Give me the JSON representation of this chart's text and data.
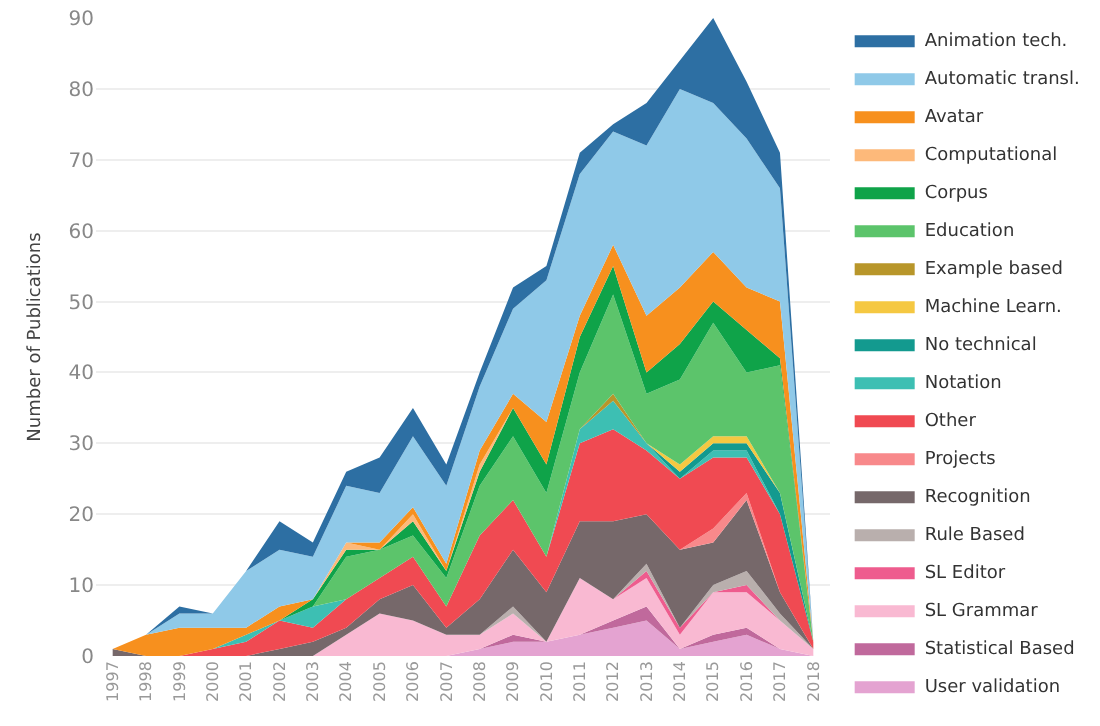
{
  "chart_data": {
    "type": "area",
    "stacked": true,
    "ylabel": "Number of Publications",
    "categories": [
      "1997",
      "1998",
      "1999",
      "2000",
      "2001",
      "2002",
      "2003",
      "2004",
      "2005",
      "2006",
      "2007",
      "2008",
      "2009",
      "2010",
      "2011",
      "2012",
      "2013",
      "2014",
      "2015",
      "2016",
      "2017",
      "2018"
    ],
    "ylim": [
      0,
      90
    ],
    "yticks": [
      0,
      10,
      20,
      30,
      40,
      50,
      60,
      70,
      80,
      90
    ],
    "grid": "y",
    "legend": "right",
    "series": [
      {
        "name": "User validation",
        "color": "#e4a3d1",
        "values": [
          0,
          0,
          0,
          0,
          0,
          0,
          0,
          0,
          0,
          0,
          0,
          1,
          2,
          2,
          3,
          4,
          5,
          1,
          2,
          3,
          1,
          0
        ]
      },
      {
        "name": "Statistical Based",
        "color": "#c0699c",
        "values": [
          null,
          null,
          null,
          null,
          null,
          null,
          null,
          null,
          null,
          null,
          null,
          0,
          1,
          0,
          0,
          1,
          2,
          0,
          1,
          1,
          0,
          null
        ]
      },
      {
        "name": "SL Grammar",
        "color": "#f9b9d2",
        "values": [
          0,
          0,
          0,
          0,
          0,
          0,
          0,
          3,
          6,
          5,
          3,
          2,
          3,
          0,
          8,
          3,
          4,
          2,
          6,
          5,
          4,
          1
        ]
      },
      {
        "name": "SL Editor",
        "color": "#ee5c8e",
        "values": [
          null,
          null,
          null,
          null,
          null,
          null,
          null,
          null,
          null,
          null,
          null,
          null,
          null,
          null,
          null,
          0,
          1,
          1,
          0,
          1,
          0,
          null
        ]
      },
      {
        "name": "Rule Based",
        "color": "#b9afad",
        "values": [
          null,
          null,
          null,
          null,
          null,
          null,
          null,
          null,
          null,
          null,
          null,
          0,
          1,
          0,
          0,
          0,
          1,
          0,
          1,
          2,
          1,
          0
        ]
      },
      {
        "name": "Recognition",
        "color": "#76686a",
        "values": [
          1,
          0,
          0,
          0,
          0,
          1,
          2,
          1,
          2,
          5,
          1,
          5,
          8,
          7,
          8,
          11,
          7,
          11,
          6,
          10,
          3,
          0
        ]
      },
      {
        "name": "Projects",
        "color": "#f8898b",
        "values": [
          null,
          null,
          null,
          null,
          null,
          null,
          null,
          null,
          null,
          null,
          null,
          null,
          null,
          null,
          null,
          null,
          null,
          0,
          2,
          1,
          0,
          null
        ]
      },
      {
        "name": "Other",
        "color": "#f04a52",
        "values": [
          0,
          0,
          0,
          1,
          2,
          4,
          2,
          4,
          3,
          4,
          3,
          9,
          7,
          5,
          11,
          13,
          9,
          10,
          10,
          5,
          11,
          1
        ]
      },
      {
        "name": "Notation",
        "color": "#3dbfb3",
        "values": [
          null,
          null,
          null,
          0,
          1,
          0,
          3,
          0,
          0,
          0,
          0,
          0,
          0,
          0,
          2,
          4,
          1,
          0,
          1,
          1,
          0,
          null
        ]
      },
      {
        "name": "No technical",
        "color": "#139a8f",
        "values": [
          null,
          null,
          null,
          null,
          null,
          null,
          null,
          null,
          null,
          null,
          null,
          null,
          null,
          null,
          null,
          null,
          0,
          1,
          1,
          1,
          3,
          0
        ]
      },
      {
        "name": "Machine Learn.",
        "color": "#f5c842",
        "values": [
          null,
          null,
          null,
          null,
          null,
          null,
          null,
          null,
          null,
          null,
          null,
          null,
          null,
          null,
          null,
          null,
          0,
          1,
          1,
          1,
          0,
          null
        ]
      },
      {
        "name": "Example based",
        "color": "#b8962a",
        "values": [
          null,
          null,
          null,
          null,
          null,
          null,
          null,
          null,
          null,
          null,
          null,
          null,
          null,
          null,
          0,
          1,
          0,
          null,
          null,
          null,
          null,
          null
        ]
      },
      {
        "name": "Education",
        "color": "#5cc46b",
        "values": [
          0,
          0,
          0,
          0,
          0,
          0,
          0,
          6,
          4,
          3,
          4,
          7,
          9,
          9,
          8,
          14,
          7,
          12,
          16,
          9,
          18,
          0
        ]
      },
      {
        "name": "Corpus",
        "color": "#0fa349",
        "values": [
          0,
          0,
          0,
          0,
          0,
          0,
          1,
          1,
          0,
          2,
          1,
          2,
          4,
          4,
          5,
          4,
          3,
          5,
          3,
          6,
          1,
          0
        ]
      },
      {
        "name": "Computational",
        "color": "#fdb97a",
        "values": [
          null,
          null,
          null,
          null,
          null,
          null,
          0,
          1,
          0,
          1,
          0,
          1,
          0,
          null,
          null,
          null,
          null,
          null,
          null,
          null,
          null,
          null
        ]
      },
      {
        "name": "Avatar",
        "color": "#f7901e",
        "values": [
          0,
          3,
          4,
          3,
          1,
          2,
          0,
          0,
          1,
          1,
          1,
          2,
          2,
          6,
          3,
          3,
          8,
          8,
          7,
          6,
          8,
          0
        ]
      },
      {
        "name": "Automatic transl.",
        "color": "#8fc9e8",
        "values": [
          0,
          0,
          2,
          2,
          8,
          8,
          6,
          8,
          7,
          10,
          11,
          9,
          12,
          20,
          20,
          16,
          24,
          28,
          21,
          21,
          16,
          0
        ]
      },
      {
        "name": "Animation tech.",
        "color": "#2d6fa3",
        "values": [
          0,
          0,
          1,
          0,
          0,
          4,
          2,
          2,
          5,
          4,
          3,
          2,
          3,
          2,
          3,
          1,
          6,
          4,
          12,
          8,
          5,
          0
        ]
      }
    ]
  }
}
